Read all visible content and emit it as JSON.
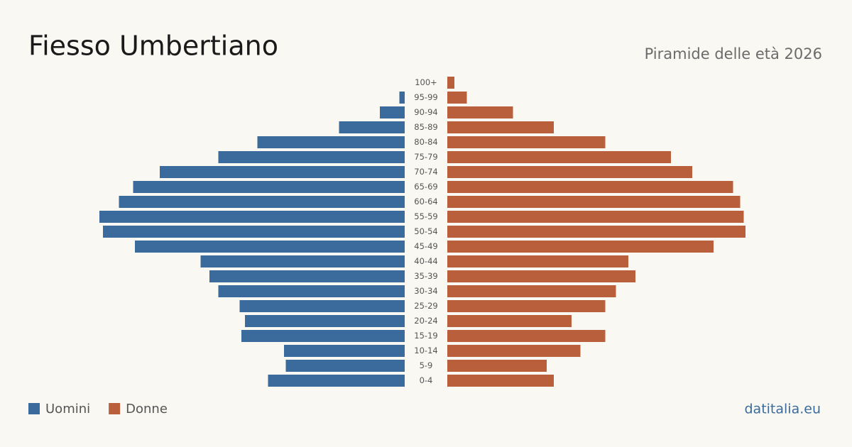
{
  "chart_data": {
    "type": "pyramid",
    "title": "Fiesso Umbertiano",
    "subtitle": "Piramide delle età 2026",
    "source": "datitalia.eu",
    "categories": [
      "100+",
      "95-99",
      "90-94",
      "85-89",
      "80-84",
      "75-79",
      "70-74",
      "65-69",
      "60-64",
      "55-59",
      "50-54",
      "45-49",
      "40-44",
      "35-39",
      "30-34",
      "25-29",
      "20-24",
      "15-19",
      "10-14",
      "5-9",
      "0-4"
    ],
    "series": [
      {
        "name": "Uomini",
        "color": "#3a6b9c",
        "side": "left",
        "values": [
          0,
          3,
          14,
          37,
          83,
          105,
          138,
          153,
          161,
          172,
          170,
          152,
          115,
          110,
          105,
          93,
          90,
          92,
          68,
          67,
          77
        ]
      },
      {
        "name": "Donne",
        "color": "#b95f3c",
        "side": "right",
        "values": [
          4,
          11,
          37,
          60,
          89,
          126,
          138,
          161,
          165,
          167,
          168,
          150,
          102,
          106,
          95,
          89,
          70,
          89,
          75,
          56,
          60
        ]
      }
    ],
    "xlim": [
      0,
      180
    ],
    "legend": "bottom-left"
  }
}
